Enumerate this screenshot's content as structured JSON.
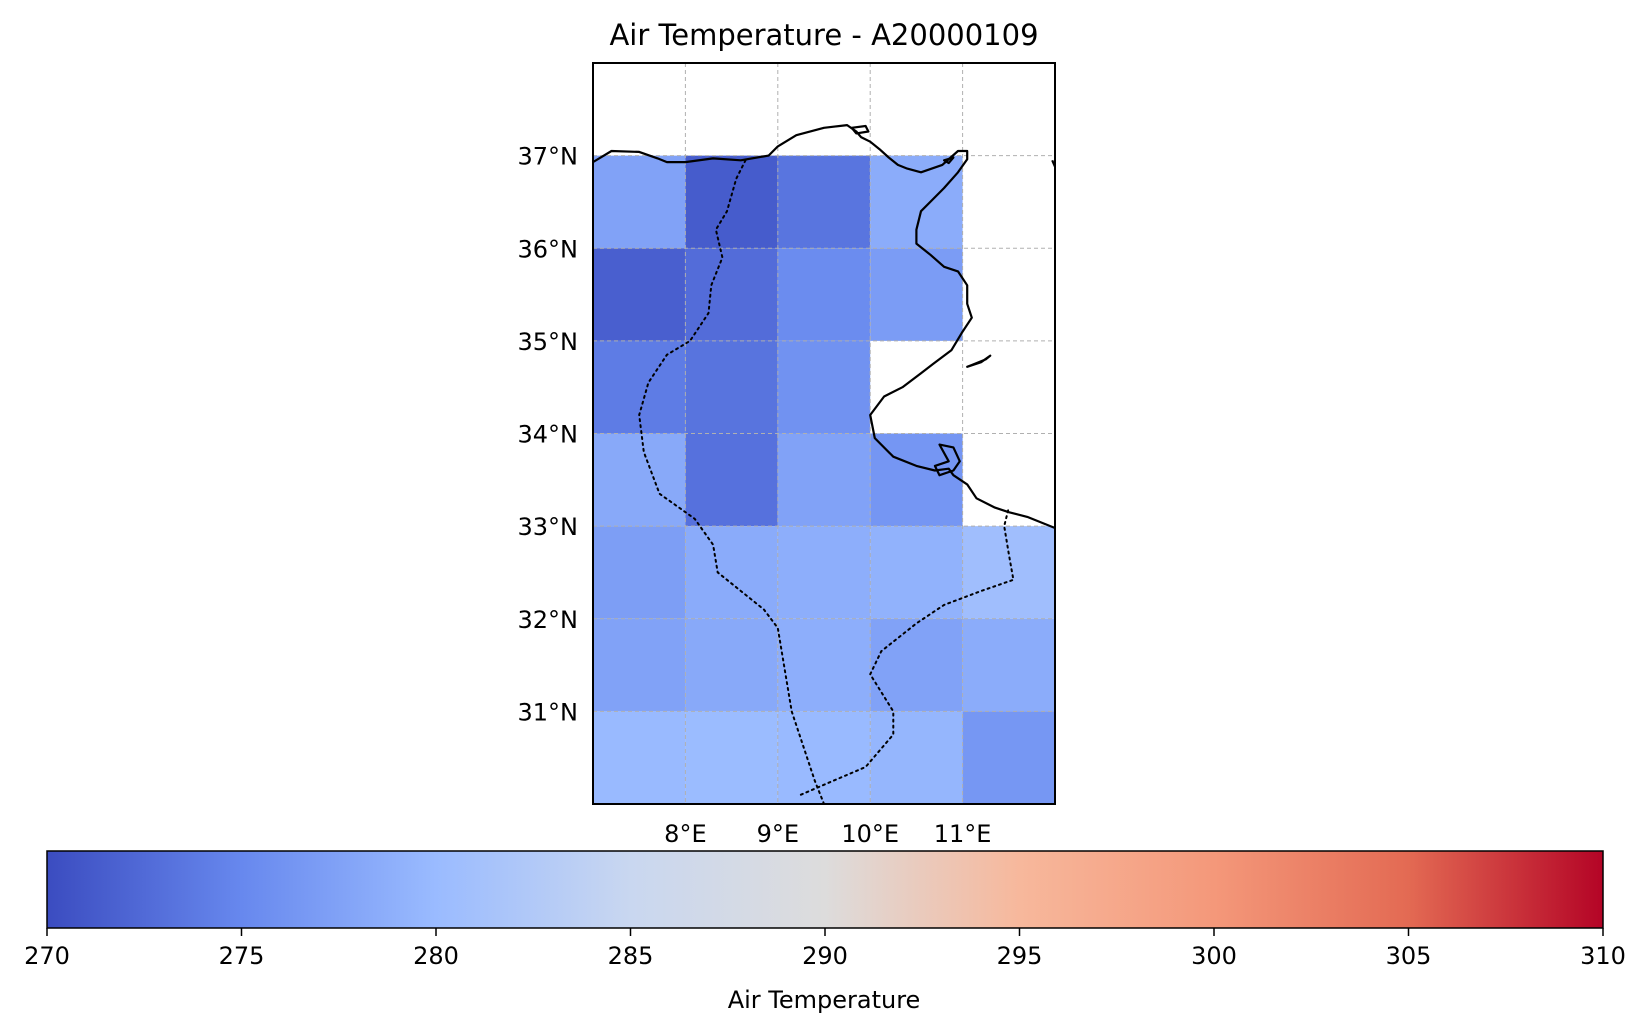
{
  "chart_data": {
    "type": "heatmap",
    "title": "Air Temperature - A20000109",
    "projection": "PlateCarree",
    "extent": {
      "lon": [
        7,
        12
      ],
      "lat": [
        30,
        38
      ]
    },
    "grid": true,
    "cell_size_deg": 1,
    "lon_ticks": [
      {
        "value": 8,
        "label": "8°E"
      },
      {
        "value": 9,
        "label": "9°E"
      },
      {
        "value": 10,
        "label": "10°E"
      },
      {
        "value": 11,
        "label": "11°E"
      }
    ],
    "lat_ticks": [
      {
        "value": 31,
        "label": "31°N"
      },
      {
        "value": 32,
        "label": "32°N"
      },
      {
        "value": 33,
        "label": "33°N"
      },
      {
        "value": 34,
        "label": "34°N"
      },
      {
        "value": 35,
        "label": "35°N"
      },
      {
        "value": 36,
        "label": "36°N"
      },
      {
        "value": 37,
        "label": "37°N"
      }
    ],
    "lon_centers": [
      7.5,
      8.5,
      9.5,
      10.5,
      11.5
    ],
    "lat_centers": [
      36.5,
      35.5,
      34.5,
      33.5,
      32.5,
      31.5,
      30.5
    ],
    "values": [
      [
        277.5,
        271.3,
        273.4,
        278.5,
        null
      ],
      [
        271.6,
        272.7,
        275.4,
        277.0,
        null
      ],
      [
        274.0,
        273.3,
        276.0,
        null,
        null
      ],
      [
        278.2,
        273.1,
        277.5,
        276.4,
        null
      ],
      [
        277.2,
        278.4,
        278.7,
        279.1,
        280.6
      ],
      [
        277.5,
        278.2,
        278.7,
        277.5,
        278.5
      ],
      [
        279.9,
        280.1,
        279.9,
        279.5,
        276.5
      ]
    ],
    "colormap": "coolwarm",
    "colormap_stops": [
      "#3b4cc0",
      "#6788ee",
      "#9abbff",
      "#c9d7f0",
      "#dddcdc",
      "#f7b89c",
      "#f4987a",
      "#e36a53",
      "#b40426"
    ],
    "colorbar": {
      "label": "Air Temperature",
      "vmin": 270,
      "vmax": 310,
      "orientation": "horizontal",
      "ticks": [
        {
          "value": 270,
          "label": "270"
        },
        {
          "value": 275,
          "label": "275"
        },
        {
          "value": 280,
          "label": "280"
        },
        {
          "value": 285,
          "label": "285"
        },
        {
          "value": 290,
          "label": "290"
        },
        {
          "value": 295,
          "label": "295"
        },
        {
          "value": 300,
          "label": "300"
        },
        {
          "value": 305,
          "label": "305"
        },
        {
          "value": 310,
          "label": "310"
        }
      ]
    },
    "coastline": [
      [
        7.0,
        36.93
      ],
      [
        7.2,
        37.05
      ],
      [
        7.5,
        37.04
      ],
      [
        7.7,
        36.97
      ],
      [
        7.8,
        36.93
      ],
      [
        8.0,
        36.93
      ],
      [
        8.3,
        36.97
      ],
      [
        8.6,
        36.95
      ],
      [
        8.9,
        37.0
      ],
      [
        9.0,
        37.1
      ],
      [
        9.2,
        37.22
      ],
      [
        9.5,
        37.3
      ],
      [
        9.75,
        37.33
      ],
      [
        9.85,
        37.26
      ],
      [
        9.9,
        37.2
      ],
      [
        10.0,
        37.15
      ],
      [
        10.1,
        37.07
      ],
      [
        10.2,
        36.98
      ],
      [
        10.3,
        36.9
      ],
      [
        10.4,
        36.86
      ],
      [
        10.55,
        36.82
      ],
      [
        10.78,
        36.9
      ],
      [
        10.95,
        37.05
      ],
      [
        11.05,
        37.05
      ],
      [
        11.05,
        36.96
      ],
      [
        10.95,
        36.82
      ],
      [
        10.8,
        36.65
      ],
      [
        10.65,
        36.5
      ],
      [
        10.55,
        36.4
      ],
      [
        10.5,
        36.2
      ],
      [
        10.5,
        36.05
      ],
      [
        10.65,
        35.93
      ],
      [
        10.8,
        35.8
      ],
      [
        10.95,
        35.75
      ],
      [
        11.05,
        35.6
      ],
      [
        11.05,
        35.4
      ],
      [
        11.1,
        35.25
      ],
      [
        11.0,
        35.1
      ],
      [
        10.88,
        34.9
      ],
      [
        10.68,
        34.75
      ],
      [
        10.55,
        34.65
      ],
      [
        10.35,
        34.5
      ],
      [
        10.15,
        34.4
      ],
      [
        10.0,
        34.2
      ],
      [
        10.05,
        33.95
      ],
      [
        10.25,
        33.75
      ],
      [
        10.5,
        33.65
      ],
      [
        10.7,
        33.6
      ],
      [
        10.85,
        33.62
      ],
      [
        10.9,
        33.55
      ],
      [
        11.05,
        33.45
      ],
      [
        11.15,
        33.3
      ],
      [
        11.35,
        33.2
      ],
      [
        11.5,
        33.15
      ],
      [
        11.7,
        33.1
      ],
      [
        12.0,
        32.98
      ]
    ],
    "islands": [
      [
        [
          10.75,
          33.88
        ],
        [
          10.9,
          33.85
        ],
        [
          10.97,
          33.7
        ],
        [
          10.9,
          33.6
        ],
        [
          10.75,
          33.55
        ],
        [
          10.7,
          33.65
        ],
        [
          10.85,
          33.7
        ],
        [
          10.75,
          33.88
        ]
      ],
      [
        [
          11.05,
          34.72
        ],
        [
          11.2,
          34.77
        ],
        [
          11.3,
          34.84
        ],
        [
          11.25,
          34.8
        ],
        [
          11.1,
          34.74
        ],
        [
          11.05,
          34.72
        ]
      ],
      [
        [
          9.8,
          37.3
        ],
        [
          9.95,
          37.32
        ],
        [
          9.98,
          37.26
        ],
        [
          9.85,
          37.24
        ],
        [
          9.8,
          37.3
        ]
      ],
      [
        [
          10.8,
          36.95
        ],
        [
          10.9,
          36.98
        ],
        [
          10.85,
          36.92
        ],
        [
          10.8,
          36.95
        ]
      ]
    ],
    "coast_right_fragment": [
      [
        11.97,
        36.95
      ],
      [
        12.0,
        36.88
      ]
    ],
    "border_algeria": [
      [
        8.65,
        36.95
      ],
      [
        8.55,
        36.75
      ],
      [
        8.45,
        36.4
      ],
      [
        8.33,
        36.2
      ],
      [
        8.4,
        35.9
      ],
      [
        8.28,
        35.6
      ],
      [
        8.25,
        35.3
      ],
      [
        8.05,
        35.0
      ],
      [
        7.8,
        34.85
      ],
      [
        7.6,
        34.55
      ],
      [
        7.5,
        34.2
      ],
      [
        7.55,
        33.8
      ],
      [
        7.72,
        33.35
      ],
      [
        8.1,
        33.08
      ],
      [
        8.3,
        32.8
      ],
      [
        8.35,
        32.5
      ],
      [
        8.85,
        32.1
      ],
      [
        9.0,
        31.9
      ],
      [
        9.15,
        31.0
      ],
      [
        9.4,
        30.25
      ],
      [
        9.5,
        30.0
      ]
    ],
    "border_libya": [
      [
        9.25,
        30.1
      ],
      [
        9.6,
        30.25
      ],
      [
        9.95,
        30.4
      ],
      [
        10.25,
        30.75
      ],
      [
        10.25,
        31.0
      ],
      [
        10.0,
        31.4
      ],
      [
        10.12,
        31.65
      ],
      [
        10.5,
        31.95
      ],
      [
        10.8,
        32.15
      ],
      [
        11.2,
        32.3
      ],
      [
        11.55,
        32.42
      ],
      [
        11.5,
        32.7
      ],
      [
        11.45,
        33.0
      ],
      [
        11.5,
        33.2
      ]
    ]
  }
}
